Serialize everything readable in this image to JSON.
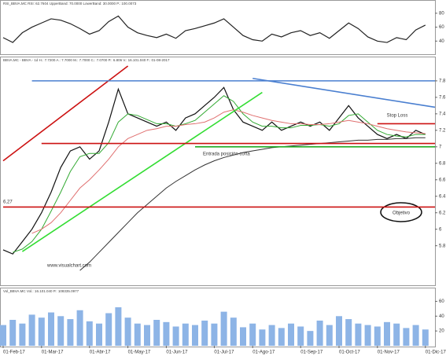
{
  "chart_data": [
    {
      "type": "line",
      "title": "RSI_BBVA.MC RSI: 62.7604 UpperBand: 70.0000 LowerBand: 30.0000 P.: 100.0073",
      "ylim": [
        20,
        90
      ],
      "yticks": [
        80,
        60,
        40
      ],
      "series": [
        {
          "color": "#222222",
          "values": [
            45,
            38,
            52,
            60,
            66,
            72,
            70,
            65,
            58,
            50,
            55,
            68,
            76,
            60,
            52,
            48,
            45,
            50,
            44,
            55,
            58,
            62,
            66,
            72,
            60,
            48,
            42,
            40,
            50,
            46,
            52,
            55,
            48,
            52,
            44,
            55,
            66,
            58,
            46,
            40,
            38,
            45,
            42,
            56,
            63
          ]
        }
      ]
    },
    {
      "type": "line",
      "title": "BBVA.MC - BBVA - 1d H.: 7.7200 A.: 7.7000 M.: 7.7000 C.: 7.0700 P.: 6.806 V.: 16.101.040 F.: 01-08-2017",
      "ylim": [
        5.33,
        7.98
      ],
      "yticks": [
        7.8,
        7.6,
        7.4,
        7.2,
        7,
        6.8,
        6.6,
        6.4,
        6.2,
        6,
        5.8
      ],
      "series": [
        {
          "color": "#111111",
          "values": [
            5.75,
            5.7,
            5.85,
            6.0,
            6.2,
            6.45,
            6.75,
            6.95,
            7.0,
            6.85,
            6.95,
            7.3,
            7.7,
            7.4,
            7.35,
            7.3,
            7.25,
            7.3,
            7.2,
            7.35,
            7.4,
            7.5,
            7.6,
            7.72,
            7.45,
            7.3,
            7.25,
            7.2,
            7.3,
            7.2,
            7.25,
            7.3,
            7.25,
            7.3,
            7.2,
            7.35,
            7.5,
            7.35,
            7.25,
            7.15,
            7.1,
            7.15,
            7.1,
            7.2,
            7.15
          ]
        },
        {
          "color": "#33aa33",
          "values": [
            null,
            5.72,
            5.76,
            5.85,
            6.0,
            6.22,
            6.45,
            6.7,
            6.88,
            6.92,
            6.92,
            7.05,
            7.3,
            7.4,
            7.38,
            7.33,
            7.28,
            7.28,
            7.25,
            7.28,
            7.32,
            7.42,
            7.52,
            7.62,
            7.55,
            7.4,
            7.3,
            7.25,
            7.25,
            7.23,
            7.23,
            7.26,
            7.26,
            7.27,
            7.25,
            7.28,
            7.38,
            7.4,
            7.3,
            7.2,
            7.15,
            7.13,
            7.12,
            7.15,
            7.15
          ]
        },
        {
          "color": "#e07070",
          "values": [
            null,
            null,
            null,
            5.95,
            6.0,
            6.08,
            6.2,
            6.35,
            6.5,
            6.6,
            6.72,
            6.85,
            7.0,
            7.1,
            7.15,
            7.2,
            7.22,
            7.25,
            7.25,
            7.27,
            7.28,
            7.3,
            7.35,
            7.42,
            7.45,
            7.42,
            7.38,
            7.35,
            7.32,
            7.3,
            7.28,
            7.28,
            7.27,
            7.27,
            7.28,
            7.3,
            7.32,
            7.3,
            7.28,
            7.25,
            7.22,
            7.2,
            7.18,
            7.17,
            7.16
          ]
        },
        {
          "color": "#333333",
          "values": [
            null,
            null,
            null,
            null,
            null,
            null,
            null,
            null,
            5.5,
            5.6,
            5.72,
            5.84,
            5.96,
            6.08,
            6.2,
            6.3,
            6.4,
            6.5,
            6.58,
            6.65,
            6.72,
            6.78,
            6.83,
            6.87,
            6.9,
            6.93,
            6.95,
            6.97,
            6.99,
            7.0,
            7.01,
            7.02,
            7.03,
            7.04,
            7.05,
            7.06,
            7.07,
            7.08,
            7.08,
            7.09,
            7.09,
            7.1,
            7.1,
            7.11,
            7.11
          ]
        }
      ],
      "lines": [
        {
          "color": "#cc1111",
          "x": [
            0,
            13
          ],
          "y": [
            6.83,
            7.98
          ]
        },
        {
          "color": "#33dd33",
          "x": [
            2,
            27
          ],
          "y": [
            5.73,
            7.66
          ]
        },
        {
          "color": "#4a7fd0",
          "x": [
            3,
            45
          ],
          "y": [
            7.8,
            7.8
          ]
        },
        {
          "color": "#4a7fd0",
          "x": [
            26,
            45
          ],
          "y": [
            7.83,
            7.48
          ]
        },
        {
          "color": "#cc1111",
          "x": [
            4,
            45
          ],
          "y": [
            7.04,
            7.04
          ]
        },
        {
          "color": "#22aa22",
          "x": [
            20,
            45
          ],
          "y": [
            7.0,
            7.0
          ]
        },
        {
          "color": "#cc1111",
          "x": [
            0,
            45
          ],
          "y": [
            6.27,
            6.27
          ]
        },
        {
          "color": "#cc1111",
          "x": [
            39,
            45
          ],
          "y": [
            7.28,
            7.28
          ]
        }
      ],
      "annotations": [
        "Stop Loss",
        "Entrada posición corta",
        "Objetivo",
        "6,27"
      ],
      "watermark": "www.visualchart.com"
    },
    {
      "type": "bar",
      "title": "Vol_BBVA.MC Vol.: 16.101.040 P.: 108335.0977",
      "ylim": [
        0,
        70
      ],
      "yticks": [
        60,
        40,
        20
      ],
      "color": "#8db4e6",
      "categories": [
        "01-Feb-17",
        null,
        null,
        null,
        "01-Mar-17",
        null,
        null,
        null,
        null,
        "01-Abr-17",
        null,
        null,
        null,
        "01-May-17",
        null,
        null,
        null,
        "01-Jun-17",
        null,
        null,
        null,
        null,
        "01-Jul-17",
        null,
        null,
        null,
        "01-Ago-17",
        null,
        null,
        null,
        null,
        "01-Sep-17",
        null,
        null,
        null,
        "01-Oct-17",
        null,
        null,
        null,
        "01-Nov-17",
        null,
        null,
        null,
        null,
        "01-Dic-17"
      ],
      "values": [
        28,
        35,
        30,
        42,
        38,
        45,
        40,
        36,
        48,
        33,
        30,
        44,
        52,
        38,
        30,
        28,
        35,
        32,
        26,
        30,
        28,
        34,
        30,
        46,
        38,
        25,
        30,
        22,
        28,
        24,
        30,
        26,
        20,
        34,
        28,
        40,
        36,
        30,
        28,
        26,
        32,
        30,
        24,
        28,
        22
      ]
    }
  ]
}
